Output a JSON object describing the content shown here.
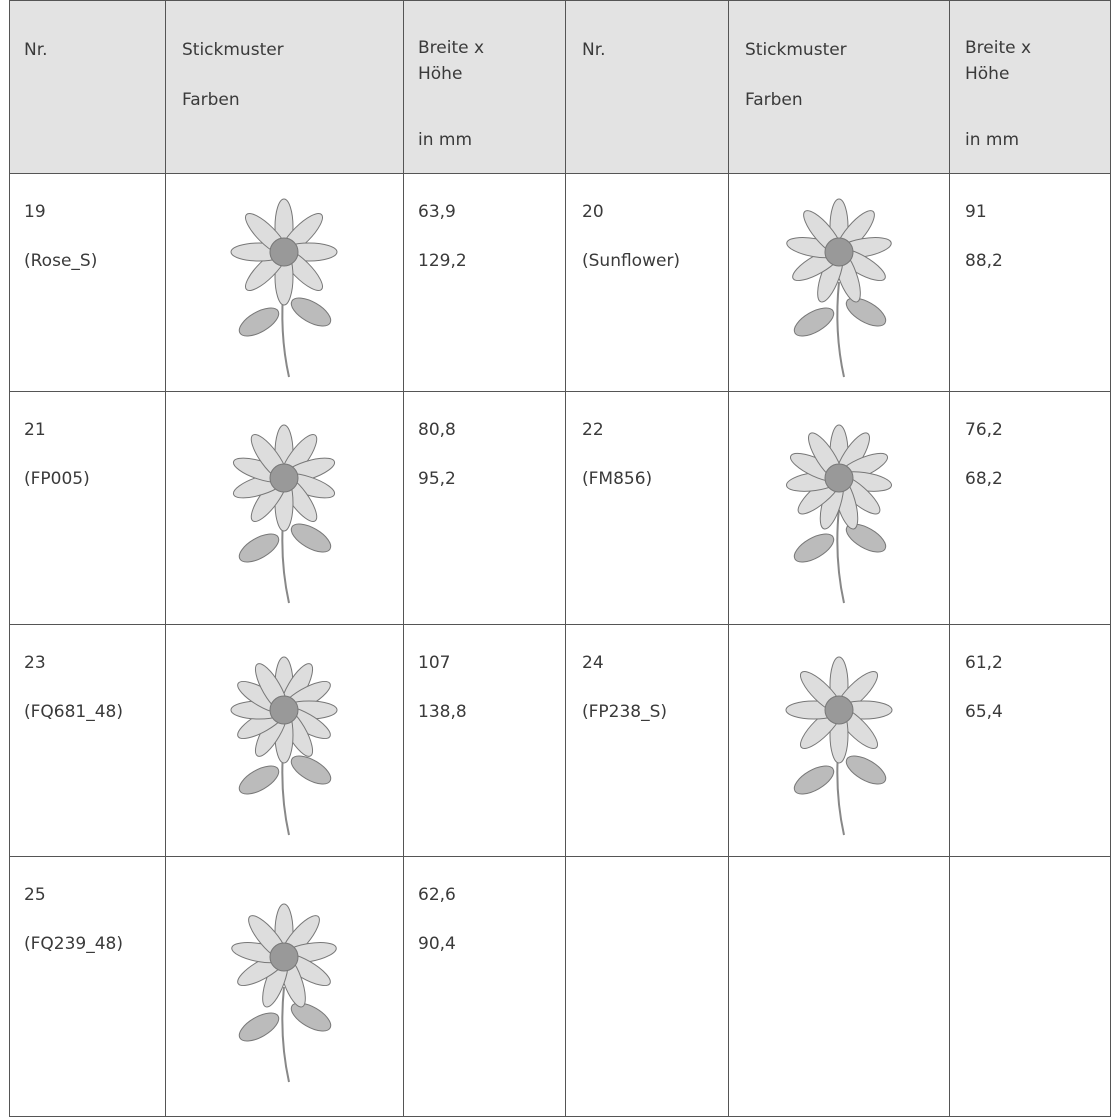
{
  "table": {
    "header": {
      "nr": "Nr.",
      "pattern": [
        "Stickmuster",
        "Farben"
      ],
      "size": [
        "Breite x",
        "Höhe",
        "in mm"
      ]
    },
    "rows": [
      [
        {
          "nr": "19",
          "name": "(Rose_S)",
          "width": "63,9",
          "height": "129,2"
        },
        {
          "nr": "20",
          "name": "(Sunflower)",
          "width": "91",
          "height": "88,2"
        }
      ],
      [
        {
          "nr": "21",
          "name": "(FP005)",
          "width": "80,8",
          "height": "95,2"
        },
        {
          "nr": "22",
          "name": "(FM856)",
          "width": "76,2",
          "height": "68,2"
        }
      ],
      [
        {
          "nr": "23",
          "name": "(FQ681_48)",
          "width": "107",
          "height": "138,8"
        },
        {
          "nr": "24",
          "name": "(FP238_S)",
          "width": "61,2",
          "height": "65,4"
        }
      ],
      [
        {
          "nr": "25",
          "name": "(FQ239_48)",
          "width": "62,6",
          "height": "90,4"
        }
      ]
    ]
  }
}
